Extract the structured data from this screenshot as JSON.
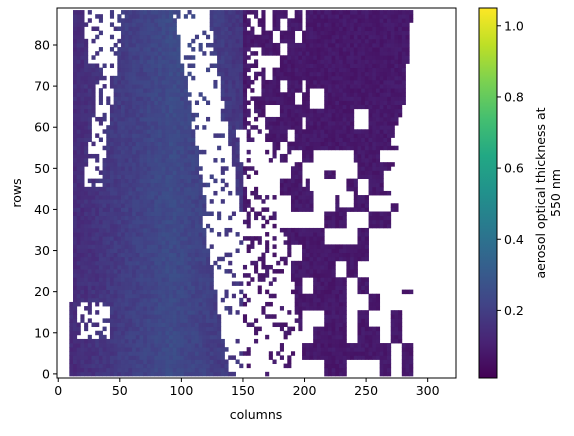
{
  "chart_data": {
    "type": "heatmap",
    "title": "",
    "xlabel": "columns",
    "ylabel": "rows",
    "x_ticks": [
      0,
      50,
      100,
      150,
      200,
      250,
      300
    ],
    "y_ticks": [
      0,
      10,
      20,
      30,
      40,
      50,
      60,
      70,
      80
    ],
    "xlim": [
      -1,
      323
    ],
    "ylim": [
      -1,
      89
    ],
    "grid": false,
    "colormap": "viridis",
    "colorbar": {
      "label_lines": [
        "aerosol optical thickness at",
        "550 nm"
      ],
      "ticks": [
        0.2,
        0.4,
        0.6,
        0.8,
        1.0
      ],
      "tick_labels": [
        "0.2",
        "0.4",
        "0.6",
        "0.8",
        "1.0"
      ],
      "range": [
        0.01,
        1.05
      ]
    },
    "description_of_field": {
      "missing_value_color": "#ffffff",
      "typical_value": 0.1,
      "value_range_present": [
        0.05,
        0.55
      ]
    }
  },
  "colors": {
    "axes": "#000000",
    "background": "#ffffff",
    "viridis_low": "#440154",
    "viridis_high": "#fde725"
  }
}
